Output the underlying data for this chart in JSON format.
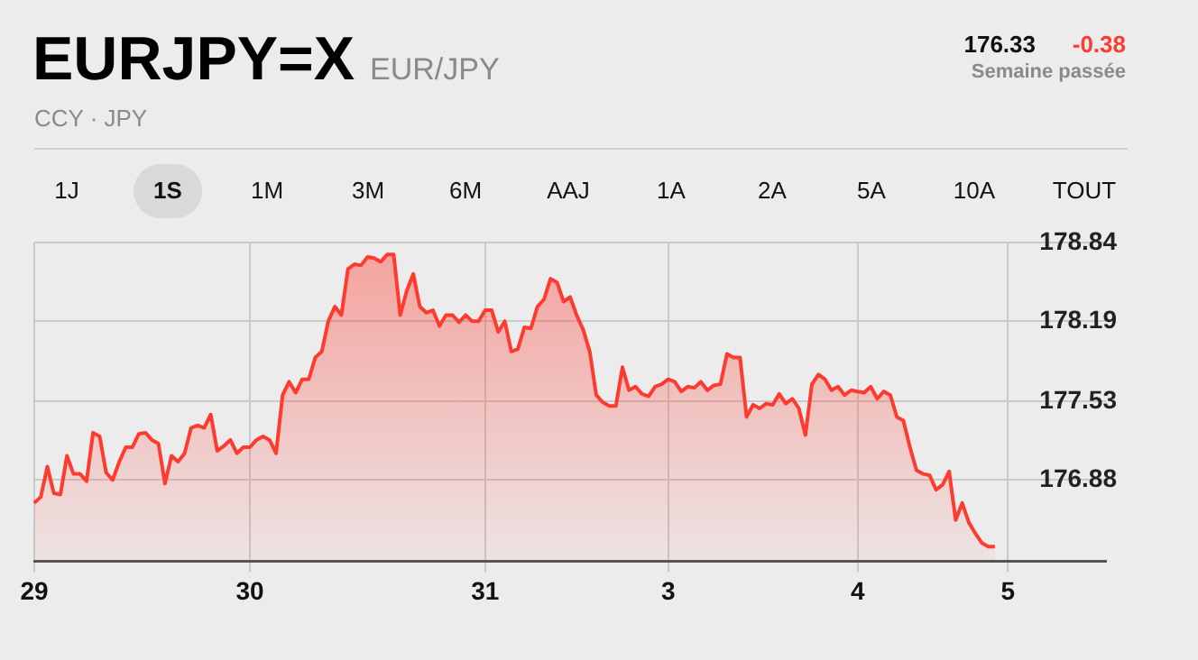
{
  "chart_data": {
    "type": "area",
    "title": "EURJPY=X",
    "subtitle": "EUR/JPY",
    "annotations": [
      "CCY · JPY",
      "176.33",
      "-0.38",
      "Semaine passée",
      "1J",
      "1S",
      "1M",
      "3M",
      "6M",
      "AAJ",
      "1A",
      "2A",
      "5A",
      "10A",
      "TOUT"
    ],
    "categories": [
      "29",
      null,
      null,
      null,
      null,
      null,
      null,
      null,
      null,
      null,
      null,
      null,
      null,
      null,
      null,
      null,
      null,
      null,
      null,
      null,
      null,
      null,
      null,
      null,
      null,
      null,
      null,
      null,
      null,
      null,
      null,
      null,
      null,
      "30",
      null,
      null,
      null,
      null,
      null,
      null,
      null,
      null,
      null,
      null,
      null,
      null,
      null,
      null,
      null,
      null,
      null,
      null,
      null,
      null,
      null,
      null,
      null,
      null,
      null,
      null,
      null,
      null,
      null,
      null,
      null,
      null,
      null,
      null,
      null,
      "31",
      null,
      null,
      null,
      null,
      null,
      null,
      null,
      null,
      null,
      null,
      null,
      null,
      null,
      null,
      null,
      null,
      null,
      null,
      null,
      null,
      null,
      null,
      null,
      null,
      null,
      null,
      null,
      "3",
      null,
      null,
      null,
      null,
      null,
      null,
      null,
      null,
      null,
      null,
      null,
      null,
      null,
      null,
      null,
      null,
      null,
      null,
      null,
      null,
      null,
      null,
      null,
      null,
      null,
      null,
      null,
      null,
      "4",
      null,
      null,
      null,
      null,
      null,
      null,
      null,
      null,
      null,
      null,
      null,
      null,
      null,
      null,
      null,
      null,
      null,
      null,
      null,
      null,
      null,
      null,
      "5",
      null,
      null,
      null,
      null,
      null,
      null,
      null,
      null,
      null,
      null,
      null,
      null,
      null,
      null,
      null
    ],
    "series": [
      {
        "color": "#ff3b30",
        "values": [
          176.69,
          176.74,
          176.99,
          176.77,
          176.76,
          177.08,
          176.93,
          176.93,
          176.87,
          177.27,
          177.24,
          176.94,
          176.88,
          177.03,
          177.15,
          177.15,
          177.26,
          177.27,
          177.21,
          177.18,
          176.85,
          177.08,
          177.03,
          177.1,
          177.31,
          177.33,
          177.31,
          177.42,
          177.12,
          177.16,
          177.21,
          177.1,
          177.15,
          177.15,
          177.21,
          177.24,
          177.21,
          177.1,
          177.58,
          177.69,
          177.6,
          177.71,
          177.71,
          177.89,
          177.94,
          178.19,
          178.31,
          178.24,
          178.62,
          178.66,
          178.65,
          178.72,
          178.71,
          178.68,
          178.74,
          178.74,
          178.24,
          178.44,
          178.58,
          178.31,
          178.26,
          178.28,
          178.15,
          178.24,
          178.24,
          178.18,
          178.24,
          178.19,
          178.19,
          178.28,
          178.28,
          178.1,
          178.19,
          177.94,
          177.96,
          178.14,
          178.13,
          178.31,
          178.37,
          178.54,
          178.51,
          178.35,
          178.39,
          178.24,
          178.12,
          177.94,
          177.58,
          177.52,
          177.49,
          177.49,
          177.81,
          177.62,
          177.65,
          177.59,
          177.57,
          177.65,
          177.67,
          177.71,
          177.69,
          177.61,
          177.65,
          177.64,
          177.69,
          177.62,
          177.66,
          177.67,
          177.92,
          177.89,
          177.89,
          177.4,
          177.5,
          177.47,
          177.51,
          177.5,
          177.59,
          177.51,
          177.55,
          177.47,
          177.25,
          177.67,
          177.75,
          177.71,
          177.62,
          177.65,
          177.58,
          177.62,
          177.61,
          177.6,
          177.65,
          177.55,
          177.61,
          177.58,
          177.4,
          177.37,
          177.15,
          176.96,
          176.93,
          176.92,
          176.8,
          176.84,
          176.95,
          176.55,
          176.69,
          176.53,
          176.44,
          176.36,
          176.33,
          176.33,
          null,
          null,
          null,
          null,
          null,
          null,
          null,
          null,
          null,
          null,
          null,
          null,
          null,
          null,
          null,
          null,
          null
        ]
      }
    ],
    "ylim": [
      176.21,
      178.84
    ],
    "yticks": [
      176.88,
      177.53,
      178.19,
      178.84
    ],
    "grid": true,
    "legend": false,
    "marker": "none",
    "line_style": "solid"
  }
}
